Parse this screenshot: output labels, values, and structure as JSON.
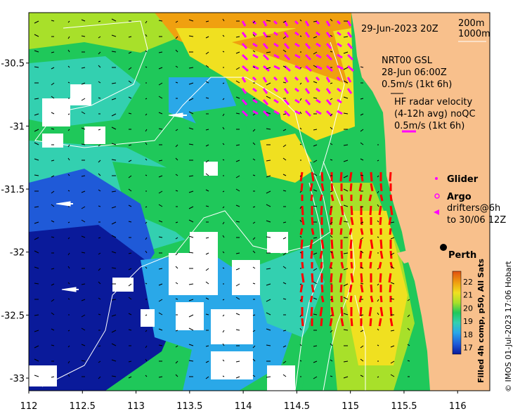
{
  "map": {
    "date_label": "29-Jun-2023 20Z",
    "depth_labels": [
      "200m",
      "1000m"
    ],
    "gsl_label": "NRT00 GSL",
    "gsl_time": "28-Jun 06:00Z",
    "gsl_scale": "0.5m/s (1kt 6h)",
    "hf_title": "HF radar velocity",
    "hf_sub": "(4-12h avg) noQC",
    "hf_scale": "0.5m/s (1kt 6h)",
    "legend_glider": "Glider",
    "legend_argo": "Argo",
    "legend_drifters_1": "drifters@6h",
    "legend_drifters_2": "to 30/06 12Z",
    "city_label": "Perth",
    "colorbar_title": "Filled 4h comp, p50, All Sats",
    "credit": "© IMOS 01-Jul-2023 17:06 Hobart",
    "colors": {
      "land": "#f8c08c",
      "hf_vectors": "#ff00ff",
      "hf_vectors_south": "#ff0000",
      "contour": "#ffffff"
    }
  },
  "chart_data": {
    "type": "heatmap",
    "x_ticks": [
      "112",
      "112.5",
      "113",
      "113.5",
      "114",
      "114.5",
      "115",
      "115.5",
      "116"
    ],
    "y_ticks": [
      "-30.5",
      "-31",
      "-31.5",
      "-32",
      "-32.5",
      "-33"
    ],
    "xlim": [
      112,
      116.3
    ],
    "ylim": [
      -33.1,
      -30.1
    ],
    "colorbar_ticks": [
      "17",
      "18",
      "19",
      "20",
      "21",
      "22"
    ],
    "colorbar_range": [
      16.5,
      22.8
    ],
    "colorbar_colors": [
      "#0a1a9a",
      "#1f5ad8",
      "#2aa8e8",
      "#33d0b0",
      "#1fc85a",
      "#a8e02a",
      "#f0e020",
      "#f0a010",
      "#e05010"
    ]
  }
}
